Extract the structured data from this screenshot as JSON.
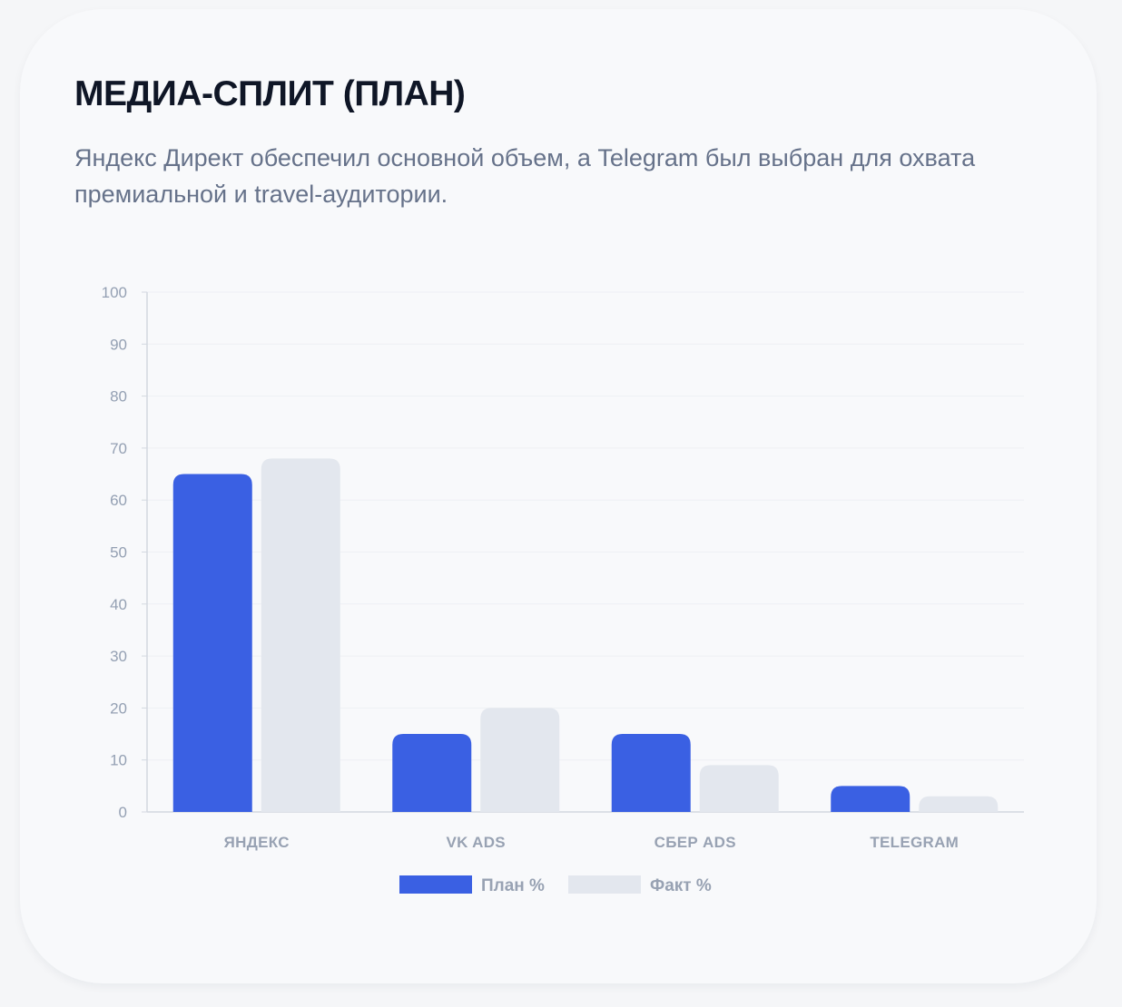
{
  "header": {
    "title": "МЕДИА-СПЛИТ (ПЛАН)",
    "subtitle": "Яндекс Директ обеспечил основной объем, а Telegram был выбран для охвата премиальной и travel-аудитории."
  },
  "colors": {
    "plan": "#3a60e3",
    "fact": "#e3e7ee",
    "grid": "#eef0f4",
    "axis": "#d3d8e0"
  },
  "chart_data": {
    "type": "bar",
    "categories": [
      "ЯНДЕКС",
      "VK ADS",
      "СБЕР ADS",
      "TELEGRAM"
    ],
    "series": [
      {
        "name": "План %",
        "values": [
          65,
          15,
          15,
          5
        ]
      },
      {
        "name": "Факт %",
        "values": [
          68,
          20,
          9,
          3
        ]
      }
    ],
    "ylim": [
      0,
      100
    ],
    "yticks": [
      "0",
      "10",
      "20",
      "30",
      "40",
      "50",
      "60",
      "70",
      "80",
      "90",
      "100"
    ],
    "grid": true,
    "legend_position": "bottom"
  }
}
